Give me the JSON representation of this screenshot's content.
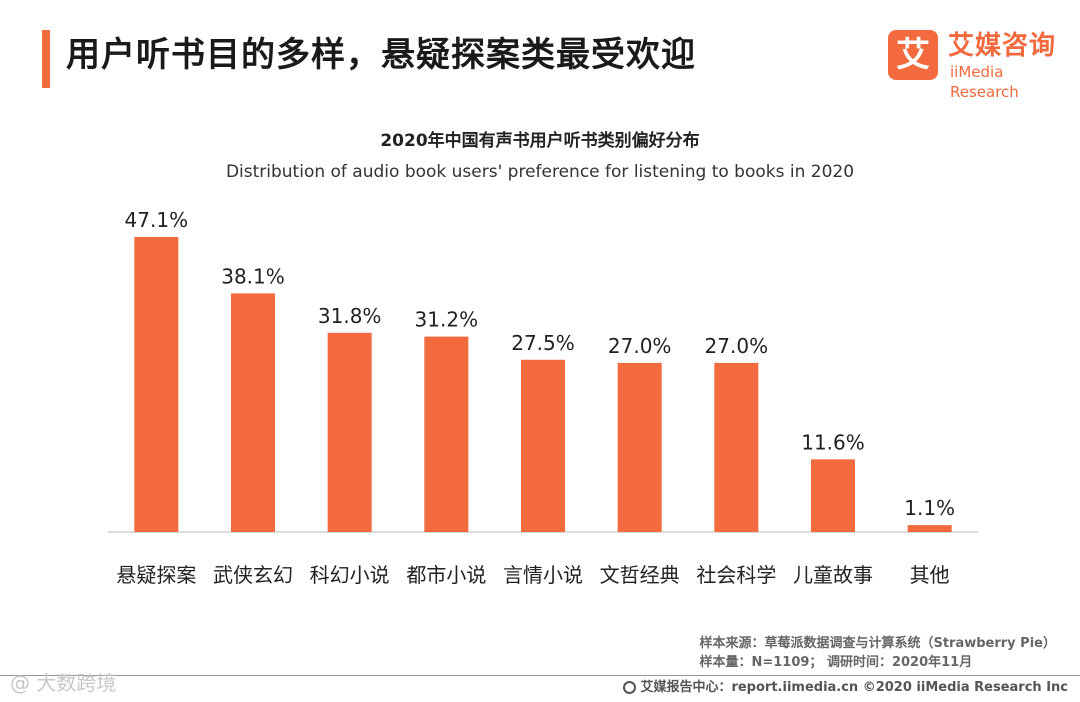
{
  "header": {
    "title": "用户听书目的多样，悬疑探案类最受欢迎",
    "logo_mark": "艾",
    "logo_cn": "艾媒咨询",
    "logo_en": "iiMedia Research"
  },
  "chart_data": {
    "type": "bar",
    "title": "2020年中国有声书用户听书类别偏好分布",
    "subtitle": "Distribution of audio book users' preference for listening to books in 2020",
    "categories": [
      "悬疑探案",
      "武侠玄幻",
      "科幻小说",
      "都市小说",
      "言情小说",
      "文哲经典",
      "社会科学",
      "儿童故事",
      "其他"
    ],
    "values": [
      47.1,
      38.1,
      31.8,
      31.2,
      27.5,
      27.0,
      27.0,
      11.6,
      1.1
    ],
    "value_labels": [
      "47.1%",
      "38.1%",
      "31.8%",
      "31.2%",
      "27.5%",
      "27.0%",
      "27.0%",
      "11.6%",
      "1.1%"
    ],
    "unit": "%",
    "ylim": [
      0,
      50
    ],
    "xlabel": "",
    "ylabel": "",
    "grid": false,
    "legend": "none",
    "bar_color": "#f26a3e"
  },
  "source": {
    "line1": "样本来源：草莓派数据调查与计算系统（Strawberry Pie）",
    "line2": "样本量：N=1109；  调研时间：2020年11月"
  },
  "footer": {
    "text": "艾媒报告中心：report.iimedia.cn  ©2020  iiMedia Research  Inc"
  },
  "watermark": {
    "text": "@ 大数跨境"
  },
  "colors": {
    "accent": "#f26a3e"
  }
}
